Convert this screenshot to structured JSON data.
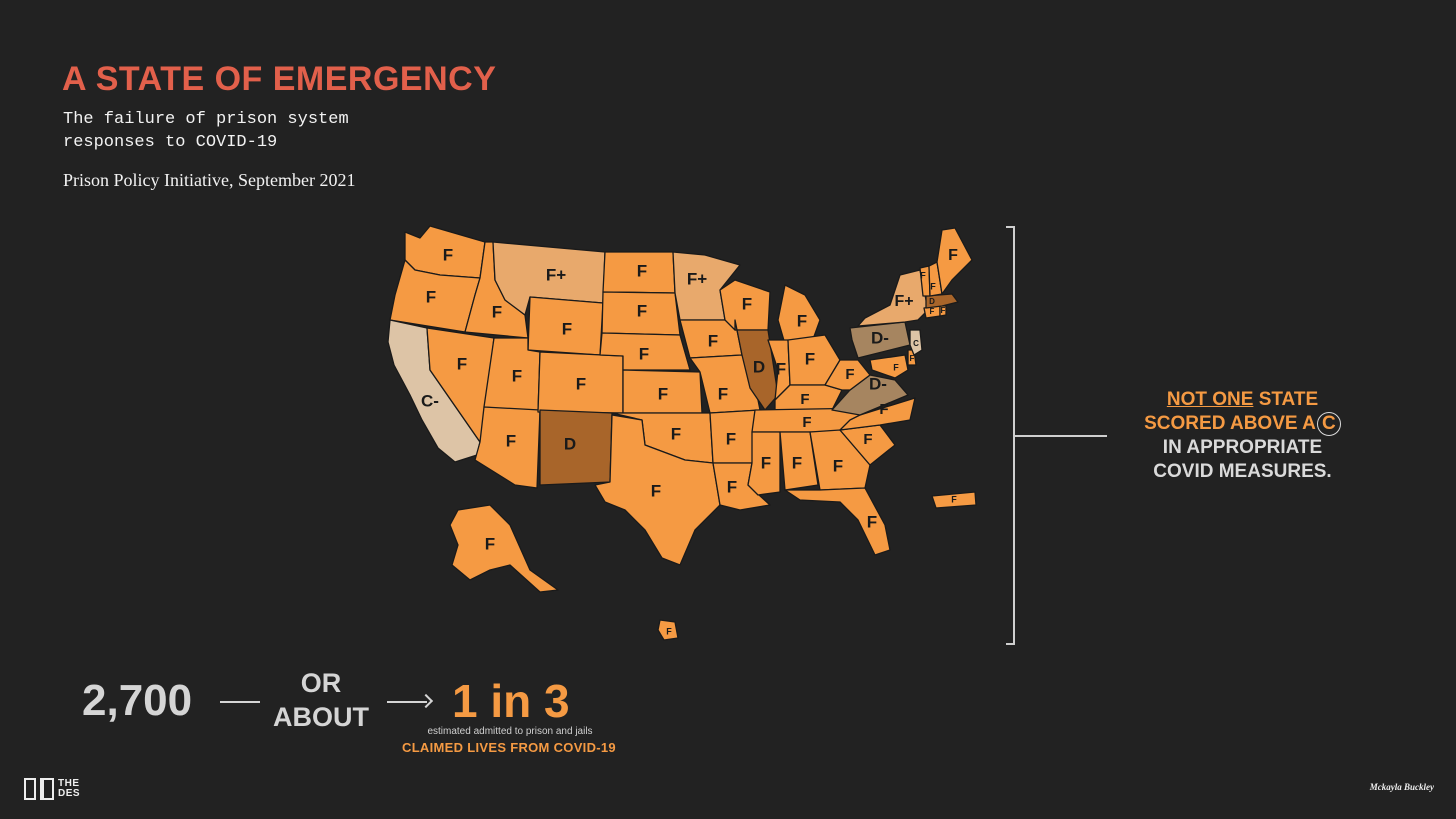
{
  "header": {
    "title": "A STATE OF EMERGENCY",
    "subtitle": "The failure of prison system responses to COVID-19",
    "source": "Prison Policy Initiative, September 2021"
  },
  "colors": {
    "background": "#222222",
    "title": "#E2604B",
    "accent": "#F59A43",
    "grade_F": "#F59A43",
    "grade_F_plus": "#E8A96C",
    "grade_D": "#A8652A",
    "grade_D_minus": "#A68560",
    "grade_C": "#DDC4A6",
    "grade_C_minus": "#DDC4A6"
  },
  "map": {
    "grades": {
      "WA": "F",
      "OR": "F",
      "CA": "C-",
      "ID": "F",
      "NV": "F",
      "MT": "F+",
      "WY": "F",
      "UT": "F",
      "AZ": "F",
      "CO": "F",
      "NM": "D",
      "ND": "F",
      "SD": "F",
      "NE": "F",
      "KS": "F",
      "OK": "F",
      "TX": "F",
      "MN": "F+",
      "IA": "F",
      "MO": "F",
      "AR": "F",
      "LA": "F",
      "WI": "F",
      "IL": "D",
      "MI": "F",
      "IN": "F",
      "OH": "F",
      "KY": "F",
      "TN": "F",
      "MS": "F",
      "AL": "F",
      "GA": "F",
      "FL": "F",
      "SC": "F",
      "NC": "F",
      "VA": "D-",
      "WV": "F",
      "PA": "D-",
      "NY": "F+",
      "ME": "F",
      "VT": "F",
      "NH": "F",
      "MA": "D",
      "RI": "F",
      "CT": "F",
      "NJ": "C",
      "DE": "F",
      "MD": "F",
      "AK": "F",
      "HI": "F",
      "PR": "F"
    }
  },
  "callout": {
    "line1_underlined": "NOT ONE",
    "line1_rest": "STATE",
    "line2_prefix": "SCORED ABOVE A",
    "line2_grade": "C",
    "line3": "IN APPROPRIATE",
    "line4": "COVID MEASURES."
  },
  "stat": {
    "number": "2,700",
    "connector": "OR ABOUT",
    "ratio": "1 in 3",
    "note": "estimated admitted to prison and jails",
    "claimed": "CLAIMED LIVES FROM COVID-19"
  },
  "footer": {
    "logo_text_1": "THE",
    "logo_text_2": "DES",
    "credit": "Mckayla Buckley"
  }
}
